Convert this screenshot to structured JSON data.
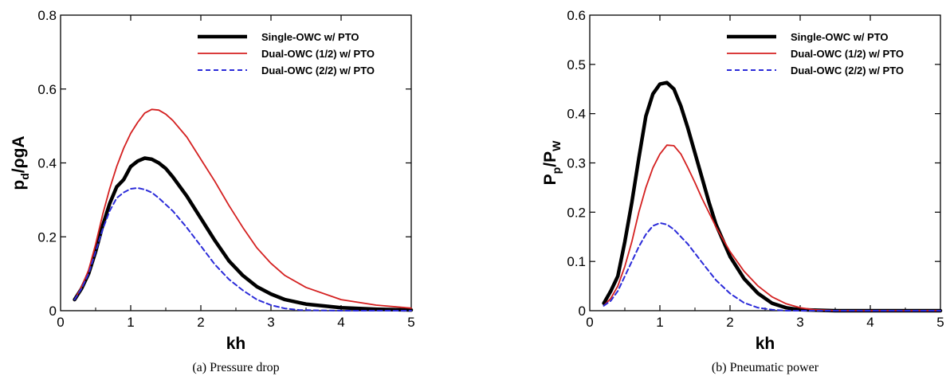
{
  "chart_data": [
    {
      "type": "line",
      "caption": "(a)  Pressure drop",
      "xlabel": "kh",
      "ylabel_main": "p",
      "ylabel_sub": "d",
      "ylabel_rest": "/ρgA",
      "xlim": [
        0,
        5
      ],
      "ylim": [
        0,
        0.8
      ],
      "xticks": [
        "0",
        "1",
        "2",
        "3",
        "4",
        "5"
      ],
      "yticks": [
        "0",
        "0.2",
        "0.4",
        "0.6",
        "0.8"
      ],
      "legend_position": "top-right",
      "series": [
        {
          "name": "Single-OWC w/ PTO",
          "color": "#000000",
          "style": "solid-thick",
          "x": [
            0.2,
            0.3,
            0.4,
            0.5,
            0.6,
            0.7,
            0.8,
            0.9,
            1.0,
            1.1,
            1.2,
            1.3,
            1.4,
            1.5,
            1.6,
            1.8,
            2.0,
            2.2,
            2.4,
            2.6,
            2.8,
            3.0,
            3.2,
            3.5,
            4.0,
            4.5,
            5.0
          ],
          "y": [
            0.03,
            0.06,
            0.1,
            0.16,
            0.23,
            0.29,
            0.335,
            0.355,
            0.39,
            0.405,
            0.413,
            0.41,
            0.4,
            0.385,
            0.362,
            0.31,
            0.25,
            0.19,
            0.135,
            0.095,
            0.065,
            0.045,
            0.03,
            0.018,
            0.008,
            0.004,
            0.002
          ]
        },
        {
          "name": "Dual-OWC (1/2) w/ PTO",
          "color": "#d42020",
          "style": "solid",
          "x": [
            0.2,
            0.3,
            0.4,
            0.5,
            0.6,
            0.7,
            0.8,
            0.9,
            1.0,
            1.1,
            1.2,
            1.3,
            1.4,
            1.5,
            1.6,
            1.8,
            2.0,
            2.2,
            2.4,
            2.6,
            2.8,
            3.0,
            3.2,
            3.5,
            4.0,
            4.5,
            5.0
          ],
          "y": [
            0.03,
            0.065,
            0.11,
            0.18,
            0.26,
            0.33,
            0.39,
            0.44,
            0.48,
            0.51,
            0.535,
            0.545,
            0.543,
            0.532,
            0.515,
            0.47,
            0.41,
            0.35,
            0.285,
            0.225,
            0.17,
            0.128,
            0.095,
            0.063,
            0.03,
            0.015,
            0.007
          ]
        },
        {
          "name": "Dual-OWC (2/2) w/ PTO",
          "color": "#2b2bd9",
          "style": "dashed",
          "x": [
            0.2,
            0.3,
            0.4,
            0.5,
            0.6,
            0.7,
            0.8,
            0.9,
            1.0,
            1.1,
            1.2,
            1.3,
            1.4,
            1.6,
            1.8,
            2.0,
            2.2,
            2.4,
            2.6,
            2.8,
            3.0,
            3.2,
            3.4,
            3.6,
            4.0,
            4.5,
            5.0
          ],
          "y": [
            0.03,
            0.06,
            0.1,
            0.16,
            0.22,
            0.27,
            0.305,
            0.32,
            0.33,
            0.332,
            0.328,
            0.32,
            0.305,
            0.27,
            0.225,
            0.175,
            0.125,
            0.085,
            0.055,
            0.03,
            0.015,
            0.006,
            0.002,
            0.001,
            0.0,
            0.0,
            0.0
          ]
        }
      ]
    },
    {
      "type": "line",
      "caption": "(b)  Pneumatic power",
      "xlabel": "kh",
      "ylabel_main": "P",
      "ylabel_sub": "p",
      "ylabel_rest": "/P",
      "ylabel_sub2": "W",
      "xlim": [
        0,
        5
      ],
      "ylim": [
        0,
        0.6
      ],
      "xticks": [
        "0",
        "1",
        "2",
        "3",
        "4",
        "5"
      ],
      "yticks": [
        "0",
        "0.1",
        "0.2",
        "0.3",
        "0.4",
        "0.5",
        "0.6"
      ],
      "legend_position": "top-right",
      "series": [
        {
          "name": "Single-OWC w/ PTO",
          "color": "#000000",
          "style": "solid-thick",
          "x": [
            0.2,
            0.3,
            0.4,
            0.5,
            0.6,
            0.7,
            0.8,
            0.9,
            1.0,
            1.1,
            1.2,
            1.3,
            1.4,
            1.5,
            1.6,
            1.7,
            1.8,
            2.0,
            2.2,
            2.4,
            2.6,
            2.8,
            3.0,
            3.5,
            4.0,
            4.5,
            5.0
          ],
          "y": [
            0.015,
            0.04,
            0.07,
            0.14,
            0.22,
            0.31,
            0.395,
            0.44,
            0.46,
            0.463,
            0.45,
            0.415,
            0.37,
            0.32,
            0.27,
            0.22,
            0.175,
            0.11,
            0.065,
            0.035,
            0.015,
            0.006,
            0.002,
            0.0,
            0.0,
            0.0,
            0.0
          ]
        },
        {
          "name": "Dual-OWC (1/2) w/ PTO",
          "color": "#d42020",
          "style": "solid",
          "x": [
            0.2,
            0.3,
            0.4,
            0.5,
            0.6,
            0.7,
            0.8,
            0.9,
            1.0,
            1.1,
            1.2,
            1.3,
            1.4,
            1.5,
            1.6,
            1.8,
            2.0,
            2.2,
            2.4,
            2.6,
            2.8,
            3.0,
            3.2,
            3.5,
            4.0,
            4.5,
            5.0
          ],
          "y": [
            0.01,
            0.025,
            0.05,
            0.09,
            0.14,
            0.2,
            0.25,
            0.29,
            0.318,
            0.336,
            0.335,
            0.318,
            0.29,
            0.26,
            0.228,
            0.17,
            0.12,
            0.08,
            0.05,
            0.028,
            0.014,
            0.006,
            0.002,
            0.0,
            0.0,
            0.0,
            0.0
          ]
        },
        {
          "name": "Dual-OWC (2/2) w/ PTO",
          "color": "#2b2bd9",
          "style": "dashed",
          "x": [
            0.2,
            0.3,
            0.4,
            0.5,
            0.6,
            0.7,
            0.8,
            0.9,
            1.0,
            1.1,
            1.2,
            1.4,
            1.6,
            1.8,
            2.0,
            2.2,
            2.4,
            2.6,
            2.8,
            3.0,
            3.5,
            4.0,
            4.5,
            5.0
          ],
          "y": [
            0.01,
            0.02,
            0.04,
            0.07,
            0.1,
            0.13,
            0.155,
            0.172,
            0.178,
            0.175,
            0.165,
            0.135,
            0.098,
            0.062,
            0.035,
            0.016,
            0.006,
            0.002,
            0.0,
            0.0,
            0.0,
            0.0,
            0.0,
            0.0
          ]
        }
      ]
    }
  ]
}
